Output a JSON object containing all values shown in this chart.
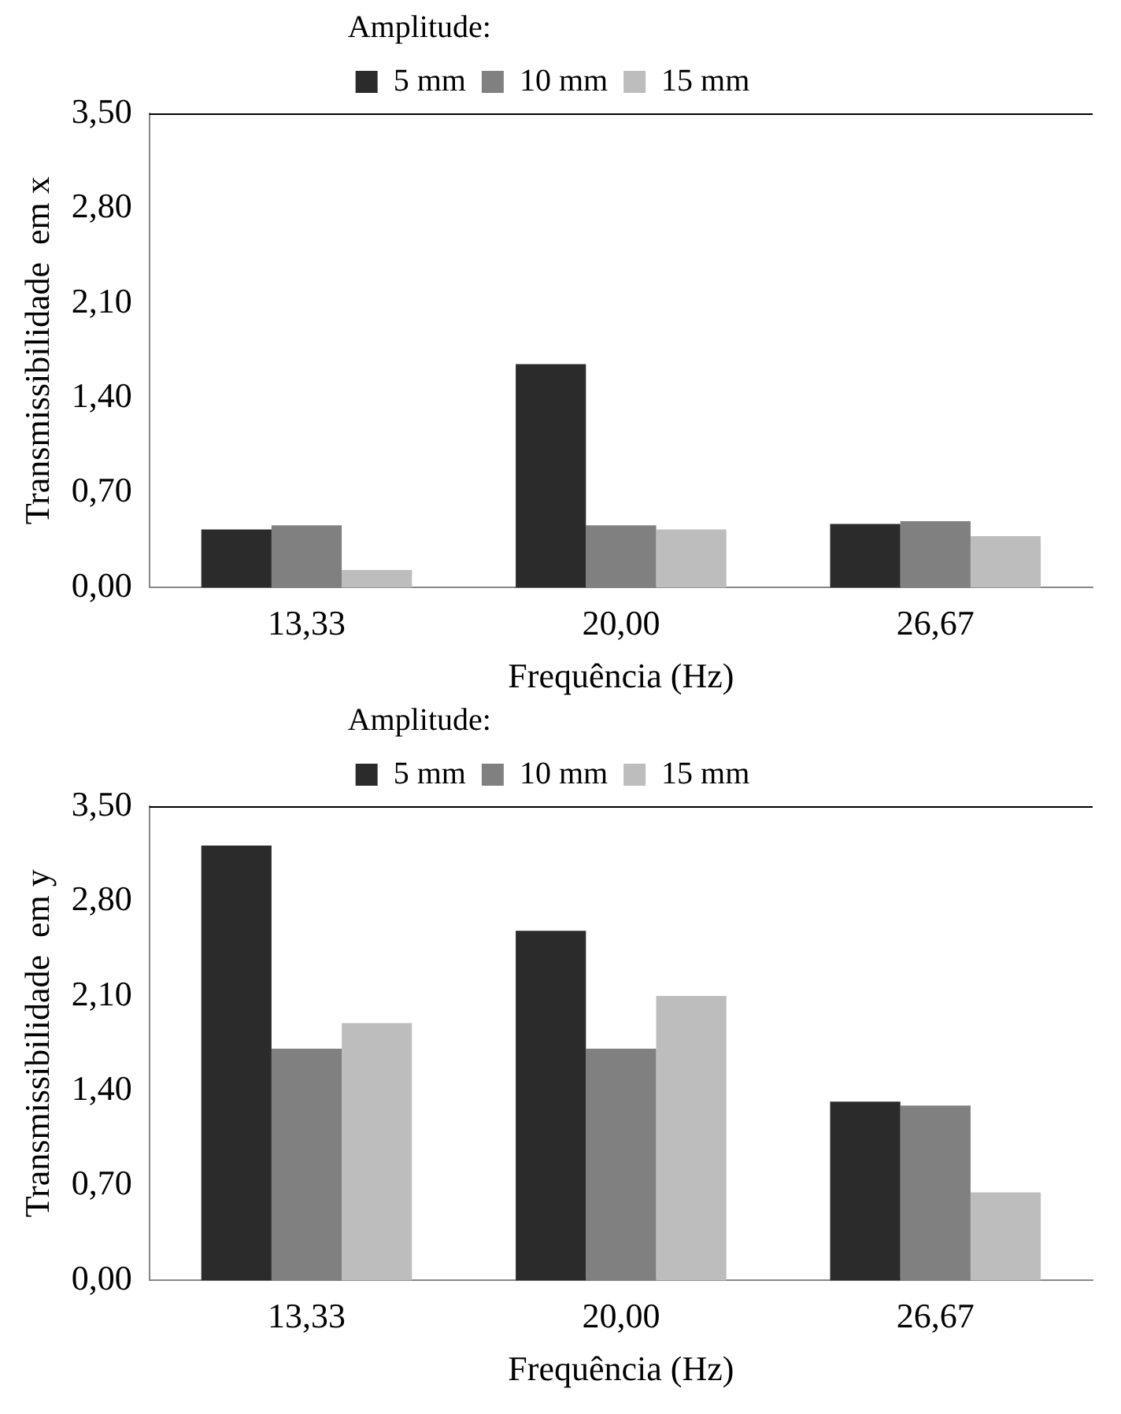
{
  "chart_data": [
    {
      "type": "bar",
      "xlabel": "Frequência (Hz)",
      "ylabel": "Transmissibilidade  em x",
      "categories": [
        "13,33",
        "20,00",
        "26,67"
      ],
      "legend": "top",
      "legend_title": "Amplitude:",
      "ylim": [
        0,
        3.5
      ],
      "yticks": [
        {
          "value": 0,
          "label": "0,00"
        },
        {
          "value": 0.7,
          "label": "0,70"
        },
        {
          "value": 1.4,
          "label": "1,40"
        },
        {
          "value": 2.1,
          "label": "2,10"
        },
        {
          "value": 2.8,
          "label": "2,80"
        },
        {
          "value": 3.5,
          "label": "3,50"
        }
      ],
      "series": [
        {
          "name": "5 mm",
          "color": "#2b2b2b",
          "values": [
            0.43,
            1.65,
            0.47
          ]
        },
        {
          "name": "10 mm",
          "color": "#808080",
          "values": [
            0.46,
            0.46,
            0.49
          ]
        },
        {
          "name": "15 mm",
          "color": "#bdbdbd",
          "values": [
            0.13,
            0.43,
            0.38
          ]
        }
      ]
    },
    {
      "type": "bar",
      "xlabel": "Frequência (Hz)",
      "ylabel": "Transmissibilidade  em y",
      "categories": [
        "13,33",
        "20,00",
        "26,67"
      ],
      "legend": "top",
      "legend_title": "Amplitude:",
      "ylim": [
        0,
        3.5
      ],
      "yticks": [
        {
          "value": 0,
          "label": "0,00"
        },
        {
          "value": 0.7,
          "label": "0,70"
        },
        {
          "value": 1.4,
          "label": "1,40"
        },
        {
          "value": 2.1,
          "label": "2,10"
        },
        {
          "value": 2.8,
          "label": "2,80"
        },
        {
          "value": 3.5,
          "label": "3,50"
        }
      ],
      "series": [
        {
          "name": "5 mm",
          "color": "#2b2b2b",
          "values": [
            3.21,
            2.58,
            1.32
          ]
        },
        {
          "name": "10 mm",
          "color": "#808080",
          "values": [
            1.71,
            1.71,
            1.29
          ]
        },
        {
          "name": "15 mm",
          "color": "#bdbdbd",
          "values": [
            1.9,
            2.1,
            0.65
          ]
        }
      ]
    }
  ]
}
